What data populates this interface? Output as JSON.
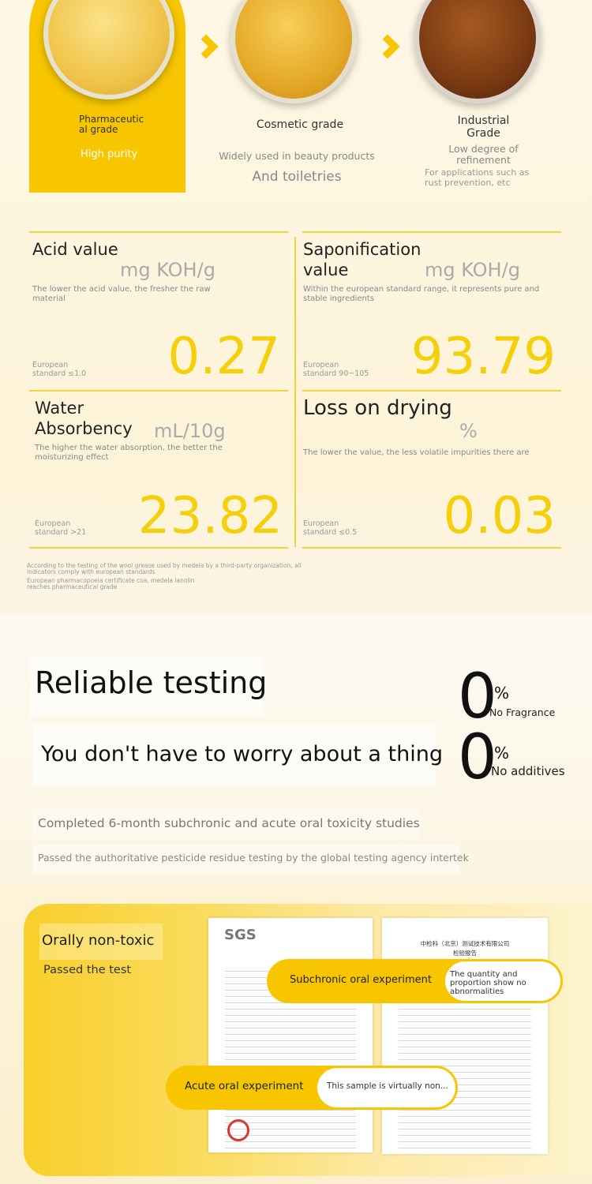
{
  "grades": [
    {
      "name": "Pharmaceutical grade",
      "desc": [
        "High purity"
      ]
    },
    {
      "name": "Cosmetic grade",
      "desc": [
        "Widely used in beauty products",
        "And toiletries"
      ]
    },
    {
      "name": "Industrial Grade",
      "desc": [
        "Low degree of refinement",
        "For applications such as rust prevention, etc"
      ]
    }
  ],
  "metrics": [
    {
      "name": "Acid value",
      "unit": "mg KOH/g",
      "desc": "The lower the acid value, the fresher the raw material",
      "standard": "European standard ≤1.0",
      "value": "0.27"
    },
    {
      "name": "Saponification value",
      "unit": "mg KOH/g",
      "desc": "Within the european standard range, it represents pure and stable ingredients",
      "standard": "European standard 90~105",
      "value": "93.79"
    },
    {
      "name": "Water Absorbency",
      "unit": "mL/10g",
      "desc": "The higher the water absorption, the better the moisturizing effect",
      "standard": "European standard >21",
      "value": "23.82"
    },
    {
      "name": "Loss on drying",
      "unit": "%",
      "desc": "The lower the value, the less volatile impurities there are",
      "standard": "European standard ≤0.5",
      "value": "0.03"
    }
  ],
  "footnotes": [
    "According to the testing of the wool grease used by medela by a third-party organization, all indicators comply with european standards",
    "European pharmacopoeia certificate coa, medela lanolin reaches pharmaceutical grade"
  ],
  "testing": {
    "title": "Reliable testing",
    "subtitle": "You don't have to worry about a thing",
    "claims": [
      {
        "value": "0",
        "unit": "%",
        "label": "No Fragrance"
      },
      {
        "value": "0",
        "unit": "%",
        "label": "No additives"
      }
    ],
    "notes": [
      "Completed 6-month subchronic and acute oral toxicity studies",
      "Passed the authoritative pesticide residue testing by the global testing agency intertek"
    ]
  },
  "results": {
    "title": "Orally non-toxic",
    "subtitle": "Passed the test",
    "reports": [
      {
        "logo": "SGS"
      },
      {
        "issuer": "中检科（北京）测试技术有限公司",
        "title": "检验报告"
      }
    ],
    "experiments": [
      {
        "name": "Subchronic oral experiment",
        "result": "The quantity and proportion show no abnormalities"
      },
      {
        "name": "Acute oral experiment",
        "result": "This sample is virtually non..."
      }
    ]
  }
}
